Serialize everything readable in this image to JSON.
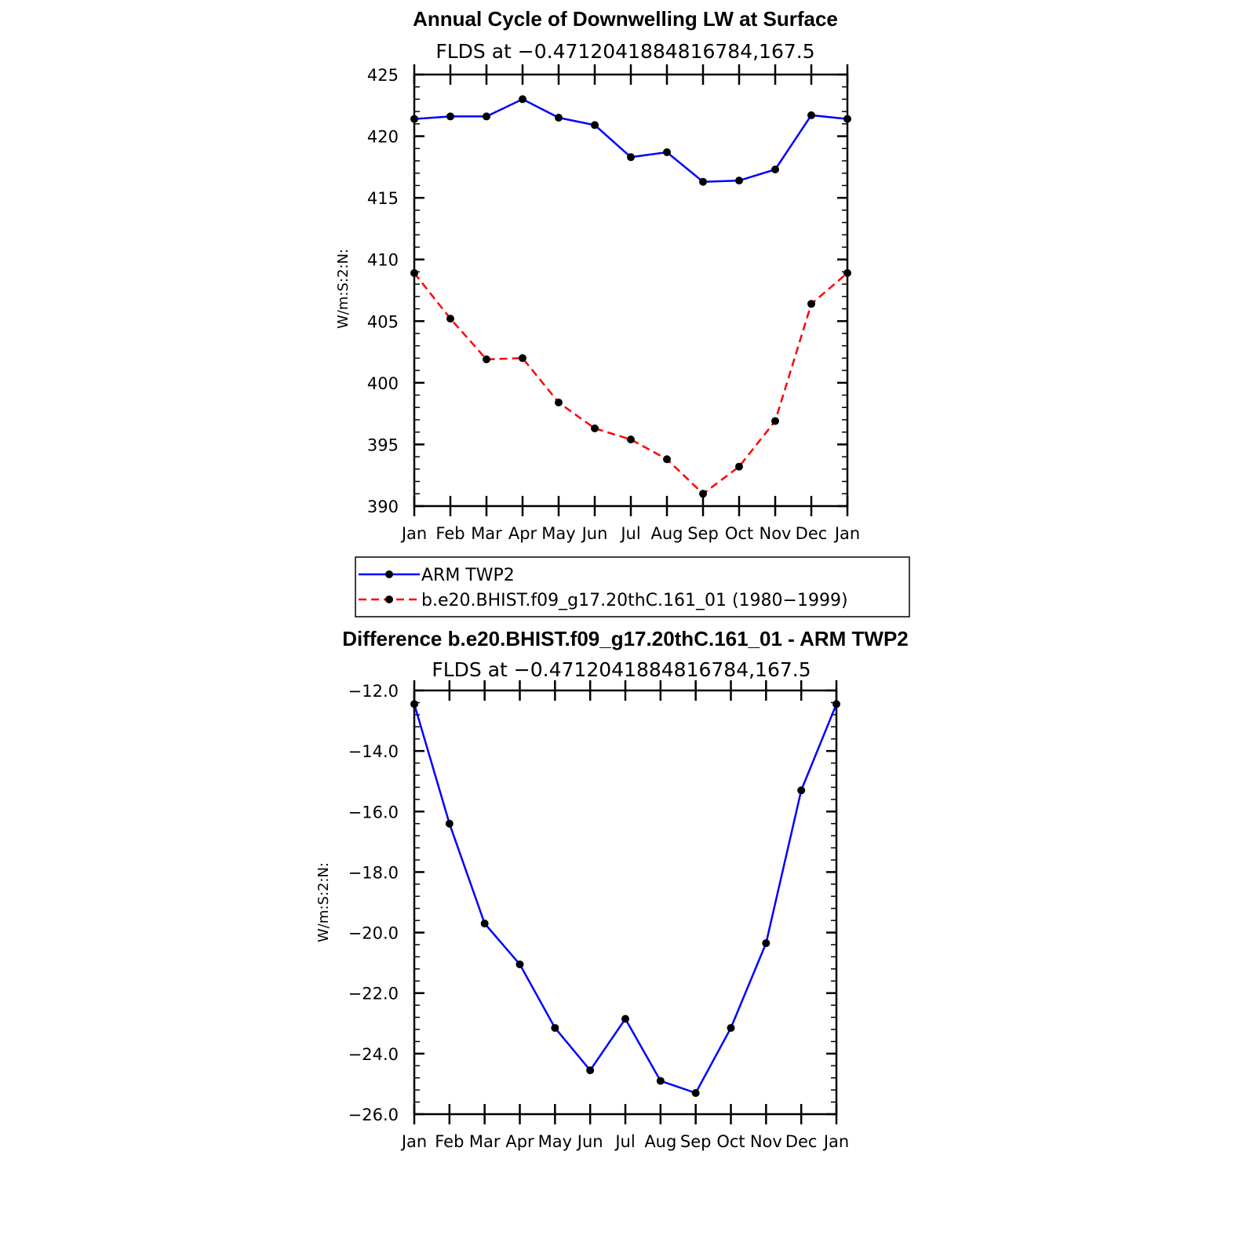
{
  "chart_data": [
    {
      "type": "line",
      "title": "Annual Cycle of Downwelling LW at Surface",
      "subtitle": "FLDS at −0.4712041884816784,167.5",
      "ylabel": "W/m:S:2:N:",
      "xlabel": "",
      "categories": [
        "Jan",
        "Feb",
        "Mar",
        "Apr",
        "May",
        "Jun",
        "Jul",
        "Aug",
        "Sep",
        "Oct",
        "Nov",
        "Dec",
        "Jan"
      ],
      "ylim": [
        390,
        425
      ],
      "yticks": [
        "390",
        "395",
        "400",
        "405",
        "410",
        "415",
        "420",
        "425"
      ],
      "grid": false,
      "series": [
        {
          "name": "ARM TWP2",
          "color": "#0000ff",
          "dash": "solid",
          "values": [
            421.4,
            421.6,
            421.6,
            423.0,
            421.5,
            420.9,
            418.3,
            418.7,
            416.3,
            416.4,
            417.3,
            421.7,
            421.4
          ]
        },
        {
          "name": "b.e20.BHIST.f09_g17.20thC.161_01 (1980−1999)",
          "color": "#ff0000",
          "dash": "dashed",
          "values": [
            408.9,
            405.2,
            401.9,
            402.0,
            398.4,
            396.3,
            395.4,
            393.8,
            391.0,
            393.2,
            396.9,
            406.4,
            408.9
          ]
        }
      ],
      "legend": "below"
    },
    {
      "type": "line",
      "title": "Difference b.e20.BHIST.f09_g17.20thC.161_01 - ARM TWP2",
      "subtitle": "FLDS at −0.4712041884816784,167.5",
      "ylabel": "W/m:S:2:N:",
      "xlabel": "",
      "categories": [
        "Jan",
        "Feb",
        "Mar",
        "Apr",
        "May",
        "Jun",
        "Jul",
        "Aug",
        "Sep",
        "Oct",
        "Nov",
        "Dec",
        "Jan"
      ],
      "ylim": [
        -26.0,
        -12.0
      ],
      "yticks": [
        "−26.0",
        "−24.0",
        "−22.0",
        "−20.0",
        "−18.0",
        "−16.0",
        "−14.0",
        "−12.0"
      ],
      "grid": false,
      "series": [
        {
          "color": "#0000ff",
          "dash": "solid",
          "values": [
            -12.45,
            -16.4,
            -19.7,
            -21.05,
            -23.15,
            -24.55,
            -22.85,
            -24.9,
            -25.3,
            -23.15,
            -20.35,
            -15.3,
            -12.45
          ]
        }
      ]
    }
  ]
}
